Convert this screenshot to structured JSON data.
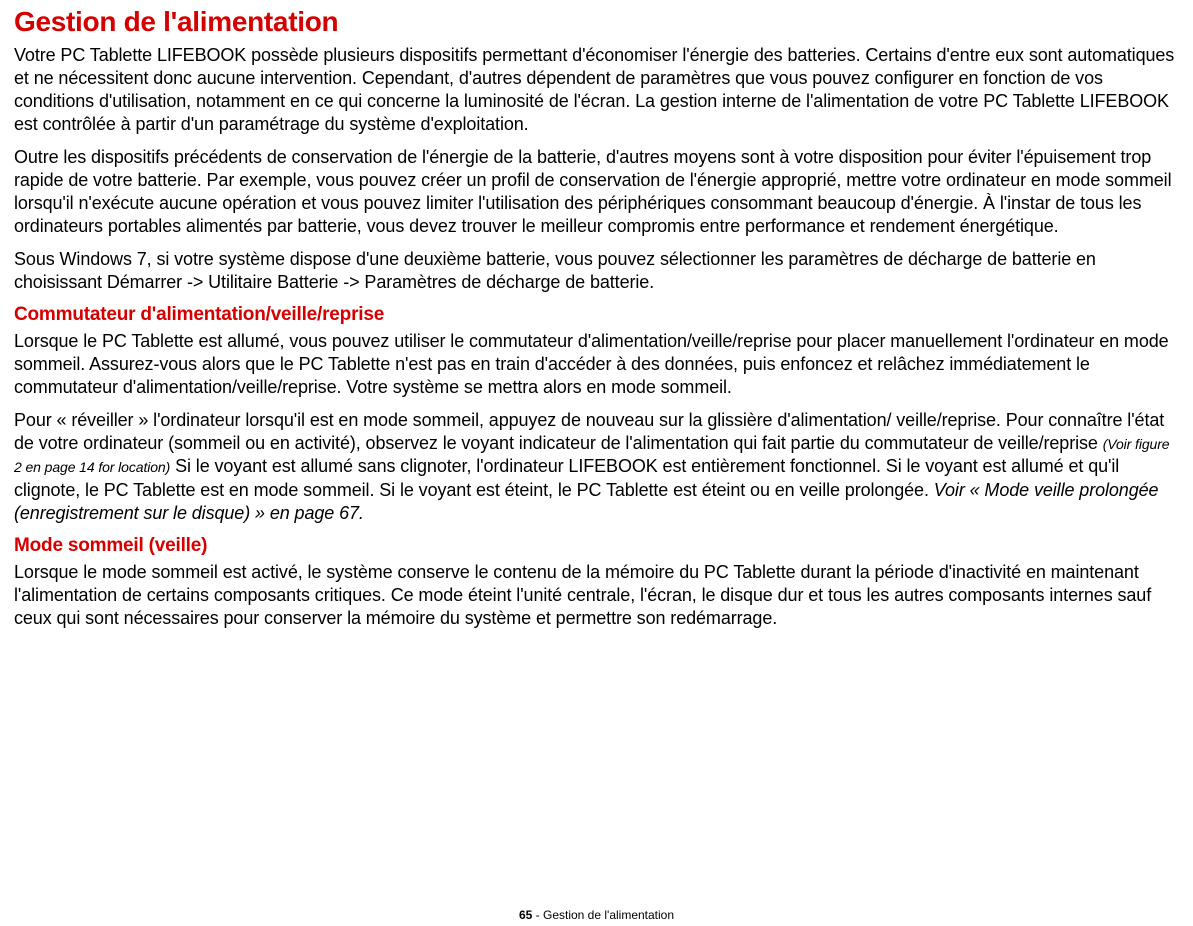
{
  "title": "Gestion de l'alimentation",
  "paragraphs": {
    "p1": "Votre PC Tablette LIFEBOOK possède plusieurs dispositifs permettant d'économiser l'énergie des batteries. Certains d'entre eux sont automatiques et ne nécessitent donc aucune intervention. Cependant, d'autres dépendent de paramètres que vous pouvez configurer en fonction de vos conditions d'utilisation, notamment en ce qui concerne la luminosité de l'écran. La gestion interne de l'alimentation de votre PC Tablette LIFEBOOK est contrôlée à partir d'un paramétrage du système d'exploitation.",
    "p2": "Outre les dispositifs précédents de conservation de l'énergie de la batterie, d'autres moyens sont à votre disposition pour éviter l'épuisement trop rapide de votre batterie. Par exemple, vous pouvez créer un profil de conservation de l'énergie approprié, mettre votre ordinateur en mode sommeil lorsqu'il n'exécute aucune opération et vous pouvez limiter l'utilisation des périphériques consommant beaucoup d'énergie. À l'instar de tous les ordinateurs portables alimentés par batterie, vous devez trouver le meilleur compromis entre performance et rendement énergétique.",
    "p3": "Sous Windows 7, si votre système dispose d'une deuxième batterie, vous pouvez sélectionner les paramètres de décharge de batterie en choisissant Démarrer -> Utilitaire Batterie -> Paramètres de décharge de batterie.",
    "p4": "Lorsque le PC Tablette est allumé, vous pouvez utiliser le commutateur d'alimentation/veille/reprise pour placer manuellement l'ordinateur en mode sommeil. Assurez-vous alors que le PC Tablette n'est pas en train d'accéder à des données, puis enfoncez et relâchez immédiatement le commutateur d'alimentation/veille/reprise. Votre système se mettra alors en mode sommeil.",
    "p5a": "Pour « réveiller » l'ordinateur lorsqu'il est en mode sommeil, appuyez de nouveau sur la glissière d'alimentation/ veille/reprise. Pour connaître l'état de votre ordinateur (sommeil ou en activité), observez le voyant indicateur de l'alimentation qui fait partie du commutateur de veille/reprise ",
    "p5_ref": "(Voir figure 2 en page 14 for location)",
    "p5b": " Si le voyant est allumé sans clignoter, l'ordinateur LIFEBOOK est entièrement fonctionnel. Si le voyant est allumé et qu'il clignote, le PC Tablette est en mode sommeil. Si le voyant est éteint, le PC Tablette est éteint ou en veille prolongée. ",
    "p5_see": "Voir « Mode veille prolongée (enregistrement sur le disque) » en page 67.",
    "p6": "Lorsque le mode sommeil est activé, le système conserve le contenu de la mémoire du PC Tablette durant la période d'inactivité en maintenant l'alimentation de certains composants critiques. Ce mode éteint l'unité centrale, l'écran, le disque dur et tous les autres composants internes sauf ceux qui sont nécessaires pour conserver la mémoire du système et permettre son redémarrage."
  },
  "headings": {
    "h1": "Commutateur d'alimentation/veille/reprise",
    "h2": "Mode sommeil (veille)"
  },
  "footer": {
    "page": "65",
    "section": " - Gestion de l'alimentation"
  },
  "style": {
    "accent_color": "#d50000",
    "text_color": "#000000",
    "background_color": "#ffffff",
    "title_fontsize": 28,
    "heading_fontsize": 19,
    "body_fontsize": 18,
    "footer_fontsize": 12
  }
}
